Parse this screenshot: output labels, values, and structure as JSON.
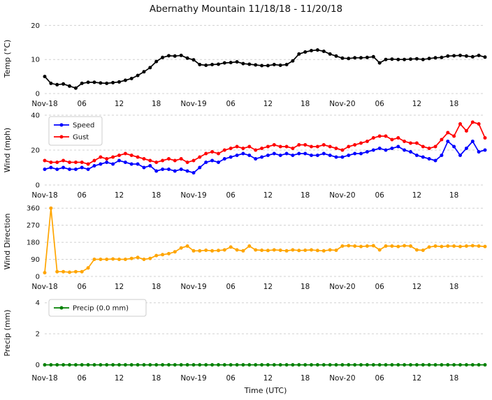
{
  "figure": {
    "title": "Abernathy Mountain 11/18/18 - 11/20/18",
    "xlabel": "Time (UTC)",
    "background": "#ffffff",
    "grid_color": "#d0d0d0",
    "text_color": "#111111"
  },
  "chart_data": [
    {
      "type": "line",
      "ylabel": "Temp (°C)",
      "ylim": [
        0,
        20.5
      ],
      "yticks": [
        0,
        10,
        20
      ],
      "legend": false,
      "x_ticks": [
        {
          "h": 0,
          "label": "Nov-18"
        },
        {
          "h": 6,
          "label": "06"
        },
        {
          "h": 12,
          "label": "12"
        },
        {
          "h": 18,
          "label": "18"
        },
        {
          "h": 24,
          "label": "Nov-19"
        },
        {
          "h": 30,
          "label": "06"
        },
        {
          "h": 36,
          "label": "12"
        },
        {
          "h": 42,
          "label": "18"
        },
        {
          "h": 48,
          "label": "Nov-20"
        },
        {
          "h": 54,
          "label": "06"
        },
        {
          "h": 60,
          "label": "12"
        },
        {
          "h": 66,
          "label": "18"
        }
      ],
      "series": [
        {
          "name": "Temp",
          "color": "#000000",
          "values": [
            5.0,
            3.0,
            2.6,
            2.8,
            2.2,
            1.6,
            3.0,
            3.3,
            3.3,
            3.1,
            3.0,
            3.2,
            3.4,
            3.9,
            4.4,
            5.3,
            6.4,
            7.6,
            9.4,
            10.6,
            11.1,
            11.0,
            11.2,
            10.4,
            9.9,
            8.5,
            8.3,
            8.5,
            8.6,
            9.0,
            9.1,
            9.3,
            8.8,
            8.6,
            8.4,
            8.2,
            8.2,
            8.5,
            8.3,
            8.5,
            9.6,
            11.6,
            12.2,
            12.6,
            12.8,
            12.4,
            11.6,
            11.0,
            10.4,
            10.3,
            10.5,
            10.5,
            10.6,
            10.8,
            9.0,
            10.0,
            10.1,
            10.0,
            10.0,
            10.1,
            10.2,
            10.0,
            10.3,
            10.5,
            10.6,
            11.0,
            11.1,
            11.2,
            11.0,
            10.8,
            11.2,
            10.7
          ]
        }
      ]
    },
    {
      "type": "line",
      "ylabel": "Wind (mph)",
      "ylim": [
        0,
        40
      ],
      "yticks": [
        0,
        20,
        40
      ],
      "legend": true,
      "x_ticks": [
        {
          "h": 0,
          "label": "Nov-18"
        },
        {
          "h": 6,
          "label": "06"
        },
        {
          "h": 12,
          "label": "12"
        },
        {
          "h": 18,
          "label": "18"
        },
        {
          "h": 24,
          "label": "Nov-19"
        },
        {
          "h": 30,
          "label": "06"
        },
        {
          "h": 36,
          "label": "12"
        },
        {
          "h": 42,
          "label": "18"
        },
        {
          "h": 48,
          "label": "Nov-20"
        },
        {
          "h": 54,
          "label": "06"
        },
        {
          "h": 60,
          "label": "12"
        },
        {
          "h": 66,
          "label": "18"
        }
      ],
      "series": [
        {
          "name": "Speed",
          "color": "#0000ff",
          "values": [
            9,
            10,
            9,
            10,
            9,
            9,
            10,
            9,
            11,
            12,
            13,
            12,
            14,
            13,
            12,
            12,
            10,
            11,
            8,
            9,
            9,
            8,
            9,
            8,
            7,
            10,
            13,
            14,
            13,
            15,
            16,
            17,
            18,
            17,
            15,
            16,
            17,
            18,
            17,
            18,
            17,
            18,
            18,
            17,
            17,
            18,
            17,
            16,
            16,
            17,
            18,
            18,
            19,
            20,
            21,
            20,
            21,
            22,
            20,
            19,
            17,
            16,
            15,
            14,
            17,
            25,
            22,
            17,
            21,
            25,
            19,
            20
          ]
        },
        {
          "name": "Gust",
          "color": "#ff0000",
          "values": [
            14,
            13,
            13,
            14,
            13,
            13,
            13,
            12,
            14,
            16,
            15,
            16,
            17,
            18,
            17,
            16,
            15,
            14,
            13,
            14,
            15,
            14,
            15,
            13,
            14,
            16,
            18,
            19,
            18,
            20,
            21,
            22,
            21,
            22,
            20,
            21,
            22,
            23,
            22,
            22,
            21,
            23,
            23,
            22,
            22,
            23,
            22,
            21,
            20,
            22,
            23,
            24,
            25,
            27,
            28,
            28,
            26,
            27,
            25,
            24,
            24,
            22,
            21,
            22,
            26,
            30,
            28,
            35,
            31,
            36,
            35,
            27
          ]
        }
      ]
    },
    {
      "type": "line",
      "ylabel": "Wind Direction",
      "ylim": [
        0,
        368
      ],
      "yticks": [
        0,
        90,
        180,
        270,
        360
      ],
      "legend": false,
      "x_ticks": [
        {
          "h": 0,
          "label": "Nov-18"
        },
        {
          "h": 6,
          "label": "06"
        },
        {
          "h": 12,
          "label": "12"
        },
        {
          "h": 18,
          "label": "18"
        },
        {
          "h": 24,
          "label": "Nov-19"
        },
        {
          "h": 30,
          "label": "06"
        },
        {
          "h": 36,
          "label": "12"
        },
        {
          "h": 42,
          "label": "18"
        },
        {
          "h": 48,
          "label": "Nov-20"
        },
        {
          "h": 54,
          "label": "06"
        },
        {
          "h": 60,
          "label": "12"
        },
        {
          "h": 66,
          "label": "18"
        }
      ],
      "series": [
        {
          "name": "Direction",
          "color": "#ffa500",
          "values": [
            20,
            360,
            25,
            25,
            22,
            25,
            25,
            45,
            90,
            90,
            90,
            92,
            90,
            90,
            95,
            100,
            90,
            95,
            110,
            115,
            120,
            130,
            150,
            160,
            135,
            135,
            138,
            135,
            137,
            140,
            155,
            140,
            135,
            160,
            140,
            138,
            137,
            140,
            138,
            135,
            140,
            137,
            138,
            140,
            137,
            135,
            140,
            138,
            160,
            162,
            160,
            158,
            160,
            162,
            140,
            160,
            160,
            158,
            162,
            160,
            140,
            138,
            155,
            160,
            158,
            160,
            160,
            158,
            160,
            162,
            160,
            158
          ]
        }
      ]
    },
    {
      "type": "line",
      "ylabel": "Precip (mm)",
      "ylim": [
        -0.2,
        4.3
      ],
      "yticks": [
        0,
        2,
        4
      ],
      "legend": true,
      "x_ticks": [
        {
          "h": 0,
          "label": "Nov-18"
        },
        {
          "h": 6,
          "label": "06"
        },
        {
          "h": 12,
          "label": "12"
        },
        {
          "h": 18,
          "label": "18"
        },
        {
          "h": 24,
          "label": "Nov-19"
        },
        {
          "h": 30,
          "label": "06"
        },
        {
          "h": 36,
          "label": "12"
        },
        {
          "h": 42,
          "label": "18"
        },
        {
          "h": 48,
          "label": "Nov-20"
        },
        {
          "h": 54,
          "label": "06"
        },
        {
          "h": 60,
          "label": "12"
        },
        {
          "h": 66,
          "label": "18"
        }
      ],
      "series": [
        {
          "name": "Precip (0.0 mm)",
          "color": "#008000",
          "values": [
            0,
            0,
            0,
            0,
            0,
            0,
            0,
            0,
            0,
            0,
            0,
            0,
            0,
            0,
            0,
            0,
            0,
            0,
            0,
            0,
            0,
            0,
            0,
            0,
            0,
            0,
            0,
            0,
            0,
            0,
            0,
            0,
            0,
            0,
            0,
            0,
            0,
            0,
            0,
            0,
            0,
            0,
            0,
            0,
            0,
            0,
            0,
            0,
            0,
            0,
            0,
            0,
            0,
            0,
            0,
            0,
            0,
            0,
            0,
            0,
            0,
            0,
            0,
            0,
            0,
            0,
            0,
            0,
            0,
            0,
            0,
            0
          ]
        }
      ]
    }
  ]
}
